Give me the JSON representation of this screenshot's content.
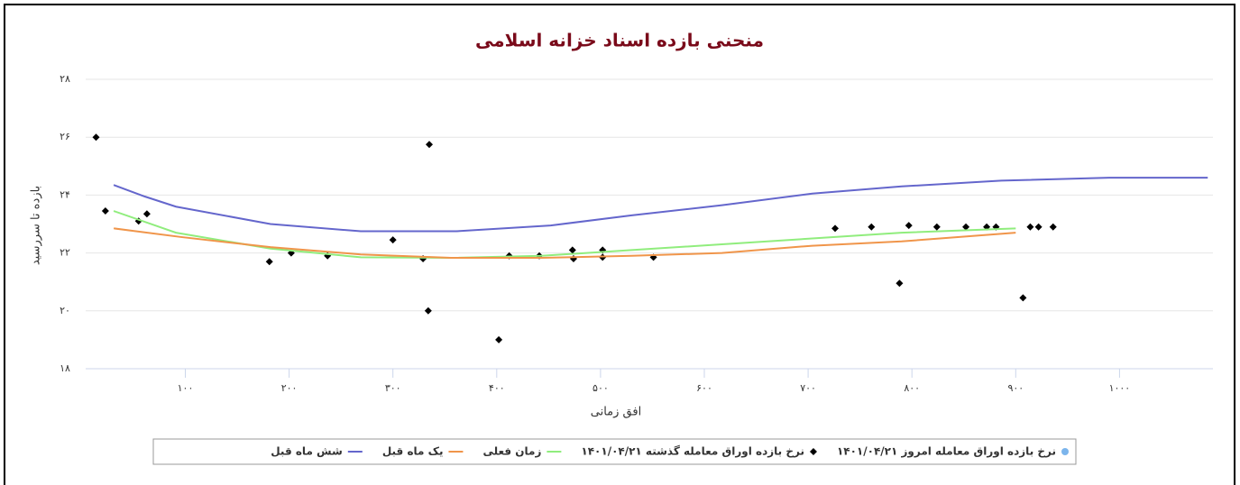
{
  "chart_data": {
    "type": "line",
    "title": "منحنی بازده اسناد خزانه اسلامی",
    "x_label": "افق زمانی",
    "y_label": "بازده تا سررسید",
    "xlim": [
      4,
      1090
    ],
    "ylim": [
      18,
      28
    ],
    "xticks": [
      {
        "value": 100,
        "label": "۱۰۰"
      },
      {
        "value": 200,
        "label": "۲۰۰"
      },
      {
        "value": 300,
        "label": "۳۰۰"
      },
      {
        "value": 400,
        "label": "۴۰۰"
      },
      {
        "value": 500,
        "label": "۵۰۰"
      },
      {
        "value": 600,
        "label": "۶۰۰"
      },
      {
        "value": 700,
        "label": "۷۰۰"
      },
      {
        "value": 800,
        "label": "۸۰۰"
      },
      {
        "value": 900,
        "label": "۹۰۰"
      },
      {
        "value": 1000,
        "label": "۱۰۰۰"
      }
    ],
    "yticks": [
      {
        "value": 18,
        "label": "۱۸"
      },
      {
        "value": 20,
        "label": "۲۰"
      },
      {
        "value": 22,
        "label": "۲۲"
      },
      {
        "value": 24,
        "label": "۲۴"
      },
      {
        "value": 26,
        "label": "۲۶"
      },
      {
        "value": 28,
        "label": "۲۸"
      }
    ],
    "grid": true,
    "legend": "bottom",
    "series": [
      {
        "name": "نرخ بازده اوراق معامله امروز ۱۴۰۱/۰۴/۲۱",
        "type": "scatter",
        "marker": "circle",
        "color": "#7cb5ec",
        "x": [],
        "values": []
      },
      {
        "name": "نرخ بازده اوراق معامله گذشته ۱۴۰۱/۰۴/۲۱",
        "type": "scatter",
        "marker": "diamond",
        "color": "#000000",
        "x": [
          14,
          23,
          55,
          63,
          181,
          202,
          237,
          300,
          329,
          335,
          334,
          402,
          412,
          441,
          473,
          474,
          502,
          502,
          551,
          726,
          761,
          788,
          797,
          824,
          852,
          872,
          881,
          907,
          914,
          922,
          936
        ],
        "values": [
          26.0,
          23.45,
          23.1,
          23.35,
          21.7,
          22.0,
          21.9,
          22.45,
          21.8,
          25.75,
          20.0,
          19.0,
          21.9,
          21.9,
          22.1,
          21.8,
          22.1,
          21.85,
          21.85,
          22.85,
          22.9,
          20.95,
          22.95,
          22.9,
          22.9,
          22.9,
          22.9,
          20.45,
          22.9,
          22.9,
          22.9
        ]
      },
      {
        "name": "زمان فعلی",
        "type": "line",
        "color": "#90ed7d",
        "x": [
          31,
          91,
          182,
          269,
          356,
          443,
          530,
          617,
          704,
          790,
          900
        ],
        "values": [
          23.45,
          22.7,
          22.15,
          21.85,
          21.83,
          21.9,
          22.1,
          22.3,
          22.5,
          22.7,
          22.85
        ]
      },
      {
        "name": "یک ماه قبل",
        "type": "line",
        "color": "#f0954a",
        "x": [
          31,
          96,
          182,
          269,
          356,
          443,
          530,
          617,
          704,
          790,
          900
        ],
        "values": [
          22.85,
          22.55,
          22.2,
          21.95,
          21.83,
          21.83,
          21.9,
          22.0,
          22.25,
          22.4,
          22.7
        ]
      },
      {
        "name": "شش ماه قبل",
        "type": "line",
        "color": "#6466cc",
        "x": [
          31,
          61,
          91,
          182,
          269,
          361,
          452,
          530,
          617,
          704,
          790,
          886,
          990,
          1085
        ],
        "values": [
          24.35,
          23.95,
          23.6,
          23.0,
          22.75,
          22.75,
          22.95,
          23.3,
          23.65,
          24.05,
          24.3,
          24.5,
          24.6,
          24.6
        ]
      }
    ]
  }
}
